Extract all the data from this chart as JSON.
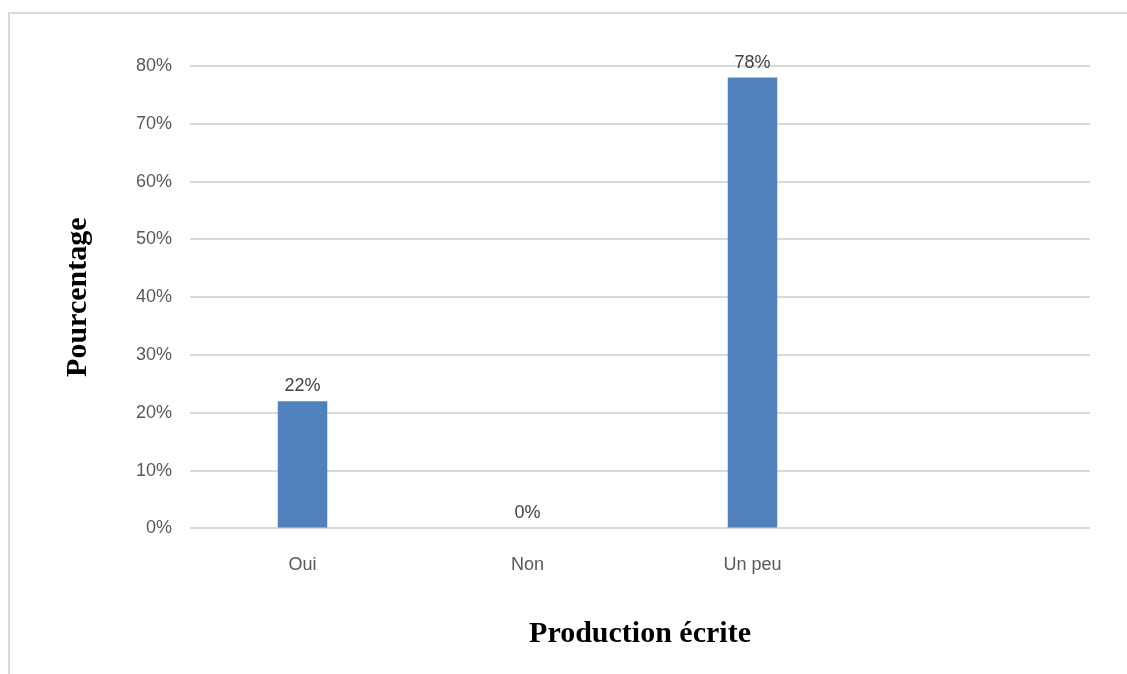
{
  "chart_data": {
    "type": "bar",
    "xlabel": "Production écrite",
    "ylabel": "Pourcentage",
    "categories": [
      "Oui",
      "Non",
      "Un peu",
      null
    ],
    "values": [
      22,
      0,
      78,
      null
    ],
    "value_labels": [
      "22%",
      "0%",
      "78%",
      null
    ],
    "color": "#4f81bd",
    "ylim": [
      0,
      80
    ],
    "yticks": [
      {
        "value": 0,
        "label": "0%"
      },
      {
        "value": 10,
        "label": "10%"
      },
      {
        "value": 20,
        "label": "20%"
      },
      {
        "value": 30,
        "label": "30%"
      },
      {
        "value": 40,
        "label": "40%"
      },
      {
        "value": 50,
        "label": "50%"
      },
      {
        "value": 60,
        "label": "60%"
      },
      {
        "value": 70,
        "label": "70%"
      },
      {
        "value": 80,
        "label": "80%"
      }
    ],
    "grid": "y"
  }
}
